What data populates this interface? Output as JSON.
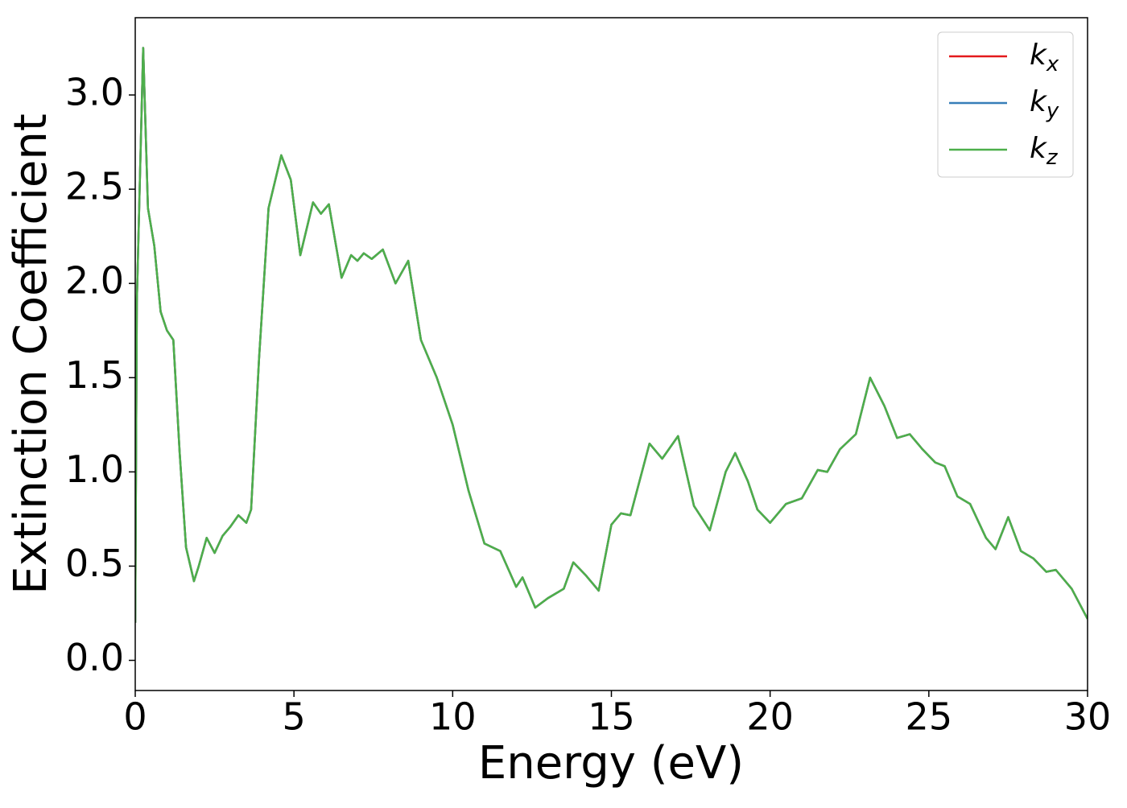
{
  "chart_data": {
    "type": "line",
    "xlabel": "Energy (eV)",
    "ylabel": "Extinction Coefficient",
    "x": [
      0,
      0.05,
      0.25,
      0.4,
      0.6,
      0.8,
      1.0,
      1.2,
      1.4,
      1.6,
      1.85,
      2.0,
      2.25,
      2.5,
      2.75,
      3.0,
      3.25,
      3.5,
      3.65,
      3.9,
      4.2,
      4.6,
      4.9,
      5.2,
      5.6,
      5.85,
      6.1,
      6.5,
      6.8,
      7.0,
      7.2,
      7.45,
      7.8,
      8.2,
      8.6,
      9.0,
      9.5,
      10.0,
      10.5,
      11.0,
      11.5,
      12.0,
      12.2,
      12.6,
      13.0,
      13.5,
      13.8,
      14.2,
      14.6,
      15.0,
      15.3,
      15.6,
      16.2,
      16.6,
      17.1,
      17.6,
      18.1,
      18.6,
      18.9,
      19.3,
      19.6,
      20.0,
      20.5,
      21.0,
      21.5,
      21.8,
      22.2,
      22.7,
      23.15,
      23.6,
      24.0,
      24.4,
      24.8,
      25.2,
      25.5,
      25.9,
      26.3,
      26.8,
      27.1,
      27.5,
      27.9,
      28.3,
      28.7,
      29.0,
      29.5,
      30.0
    ],
    "series": [
      {
        "name": "kx",
        "color": "#e41a1c",
        "values": [
          0.2,
          1.9,
          3.25,
          2.4,
          2.2,
          1.85,
          1.75,
          1.7,
          1.1,
          0.6,
          0.42,
          0.5,
          0.65,
          0.57,
          0.66,
          0.71,
          0.77,
          0.73,
          0.8,
          1.6,
          2.4,
          2.68,
          2.55,
          2.15,
          2.43,
          2.37,
          2.42,
          2.03,
          2.15,
          2.12,
          2.16,
          2.13,
          2.18,
          2.0,
          2.12,
          1.7,
          1.5,
          1.25,
          0.9,
          0.62,
          0.58,
          0.39,
          0.44,
          0.28,
          0.33,
          0.38,
          0.52,
          0.45,
          0.37,
          0.72,
          0.78,
          0.77,
          1.15,
          1.07,
          1.19,
          0.82,
          0.69,
          1.0,
          1.1,
          0.95,
          0.8,
          0.73,
          0.83,
          0.86,
          1.01,
          1.0,
          1.12,
          1.2,
          1.5,
          1.35,
          1.18,
          1.2,
          1.12,
          1.05,
          1.03,
          0.87,
          0.83,
          0.65,
          0.59,
          0.76,
          0.58,
          0.54,
          0.47,
          0.48,
          0.38,
          0.22
        ]
      },
      {
        "name": "ky",
        "color": "#377eb8",
        "values": [
          0.2,
          1.9,
          3.25,
          2.4,
          2.2,
          1.85,
          1.75,
          1.7,
          1.1,
          0.6,
          0.42,
          0.5,
          0.65,
          0.57,
          0.66,
          0.71,
          0.77,
          0.73,
          0.8,
          1.6,
          2.4,
          2.68,
          2.55,
          2.15,
          2.43,
          2.37,
          2.42,
          2.03,
          2.15,
          2.12,
          2.16,
          2.13,
          2.18,
          2.0,
          2.12,
          1.7,
          1.5,
          1.25,
          0.9,
          0.62,
          0.58,
          0.39,
          0.44,
          0.28,
          0.33,
          0.38,
          0.52,
          0.45,
          0.37,
          0.72,
          0.78,
          0.77,
          1.15,
          1.07,
          1.19,
          0.82,
          0.69,
          1.0,
          1.1,
          0.95,
          0.8,
          0.73,
          0.83,
          0.86,
          1.01,
          1.0,
          1.12,
          1.2,
          1.5,
          1.35,
          1.18,
          1.2,
          1.12,
          1.05,
          1.03,
          0.87,
          0.83,
          0.65,
          0.59,
          0.76,
          0.58,
          0.54,
          0.47,
          0.48,
          0.38,
          0.22
        ]
      },
      {
        "name": "kz",
        "color": "#4daf4a",
        "values": [
          0.2,
          1.9,
          3.25,
          2.4,
          2.2,
          1.85,
          1.75,
          1.7,
          1.1,
          0.6,
          0.42,
          0.5,
          0.65,
          0.57,
          0.66,
          0.71,
          0.77,
          0.73,
          0.8,
          1.6,
          2.4,
          2.68,
          2.55,
          2.15,
          2.43,
          2.37,
          2.42,
          2.03,
          2.15,
          2.12,
          2.16,
          2.13,
          2.18,
          2.0,
          2.12,
          1.7,
          1.5,
          1.25,
          0.9,
          0.62,
          0.58,
          0.39,
          0.44,
          0.28,
          0.33,
          0.38,
          0.52,
          0.45,
          0.37,
          0.72,
          0.78,
          0.77,
          1.15,
          1.07,
          1.19,
          0.82,
          0.69,
          1.0,
          1.1,
          0.95,
          0.8,
          0.73,
          0.83,
          0.86,
          1.01,
          1.0,
          1.12,
          1.2,
          1.5,
          1.35,
          1.18,
          1.2,
          1.12,
          1.05,
          1.03,
          0.87,
          0.83,
          0.65,
          0.59,
          0.76,
          0.58,
          0.54,
          0.47,
          0.48,
          0.38,
          0.22
        ]
      }
    ],
    "xlim": [
      0,
      30
    ],
    "xticks": [
      0,
      5,
      10,
      15,
      20,
      25,
      30
    ],
    "ylim": [
      -0.16,
      3.41
    ],
    "yticks": [
      {
        "value": 0,
        "label": "0.0"
      },
      0.5,
      {
        "value": 1,
        "label": "1.0"
      },
      1.5,
      {
        "value": 2,
        "label": "2.0"
      },
      2.5,
      {
        "value": 3,
        "label": "3.0"
      }
    ],
    "grid": false,
    "legend": "upper right"
  }
}
